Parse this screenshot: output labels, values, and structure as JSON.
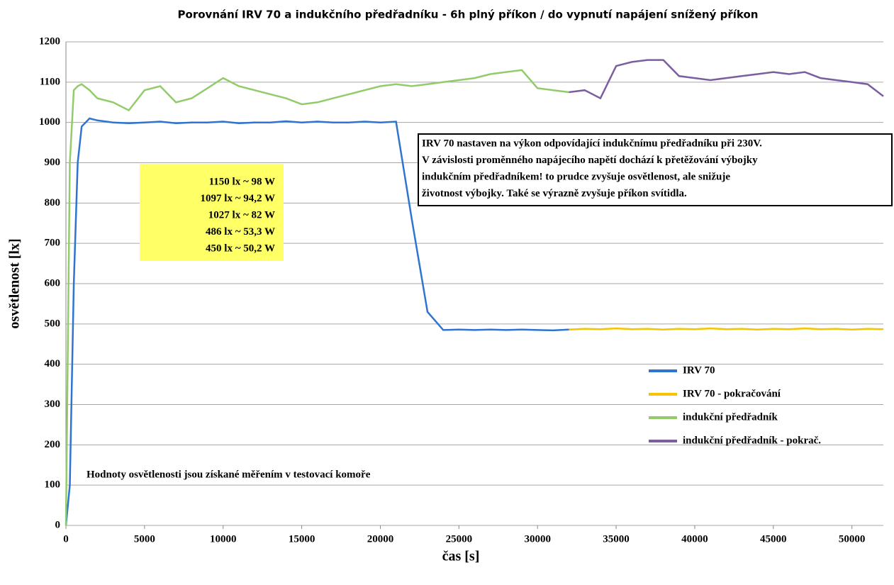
{
  "chart_data": {
    "type": "line",
    "title": "Porovnání IRV 70 a indukčního předřadníku - 6h plný příkon / do vypnutí napájení snížený příkon",
    "x_label": "čas [s]",
    "y_label": "osvětlenost [lx]",
    "x": [
      0,
      250,
      500,
      750,
      1000,
      1500,
      2000,
      3000,
      4000,
      5000,
      6000,
      7000,
      8000,
      9000,
      10000,
      11000,
      12000,
      13000,
      14000,
      15000,
      16000,
      17000,
      18000,
      19000,
      20000,
      21000,
      22000,
      23000,
      24000,
      25000,
      26000,
      27000,
      28000,
      29000,
      30000,
      31000,
      32000,
      33000,
      34000,
      35000,
      36000,
      37000,
      38000,
      39000,
      40000,
      41000,
      42000,
      43000,
      44000,
      45000,
      46000,
      47000,
      48000,
      49000,
      50000,
      51000,
      52000
    ],
    "series": [
      {
        "name": "IRV 70",
        "color": "#2f74d0",
        "values": [
          0,
          100,
          600,
          900,
          990,
          1010,
          1005,
          1000,
          998,
          1000,
          1002,
          998,
          1000,
          1000,
          1002,
          998,
          1000,
          1000,
          1003,
          1000,
          1002,
          1000,
          1000,
          1002,
          1000,
          1002,
          760,
          530,
          485,
          486,
          485,
          486,
          485,
          486,
          485,
          484,
          486,
          null,
          null,
          null,
          null,
          null,
          null,
          null,
          null,
          null,
          null,
          null,
          null,
          null,
          null,
          null,
          null,
          null,
          null,
          null,
          null
        ]
      },
      {
        "name": "IRV 70  - pokračování",
        "color": "#f5c400",
        "values": [
          null,
          null,
          null,
          null,
          null,
          null,
          null,
          null,
          null,
          null,
          null,
          null,
          null,
          null,
          null,
          null,
          null,
          null,
          null,
          null,
          null,
          null,
          null,
          null,
          null,
          null,
          null,
          null,
          null,
          null,
          null,
          null,
          null,
          null,
          null,
          null,
          486,
          488,
          487,
          489,
          487,
          488,
          486,
          488,
          487,
          489,
          487,
          488,
          486,
          488,
          487,
          489,
          487,
          488,
          486,
          488,
          487
        ]
      },
      {
        "name": "indukční předřadník",
        "color": "#92cc6a",
        "values": [
          0,
          900,
          1080,
          1090,
          1095,
          1080,
          1060,
          1050,
          1030,
          1080,
          1090,
          1050,
          1060,
          1085,
          1110,
          1090,
          1080,
          1070,
          1060,
          1045,
          1050,
          1060,
          1070,
          1080,
          1090,
          1095,
          1090,
          1095,
          1100,
          1105,
          1110,
          1120,
          1125,
          1130,
          1085,
          1080,
          1075,
          null,
          null,
          null,
          null,
          null,
          null,
          null,
          null,
          null,
          null,
          null,
          null,
          null,
          null,
          null,
          null,
          null,
          null,
          null,
          null
        ]
      },
      {
        "name": "indukční předřadník  - pokrač.",
        "color": "#7a5ea0",
        "values": [
          null,
          null,
          null,
          null,
          null,
          null,
          null,
          null,
          null,
          null,
          null,
          null,
          null,
          null,
          null,
          null,
          null,
          null,
          null,
          null,
          null,
          null,
          null,
          null,
          null,
          null,
          null,
          null,
          null,
          null,
          null,
          null,
          null,
          null,
          null,
          null,
          1075,
          1080,
          1060,
          1140,
          1150,
          1155,
          1155,
          1115,
          1110,
          1105,
          1110,
          1115,
          1120,
          1125,
          1120,
          1125,
          1110,
          1105,
          1100,
          1095,
          1065
        ]
      }
    ],
    "xlim": [
      0,
      52000
    ],
    "ylim": [
      0,
      1200
    ],
    "xticks": [
      0,
      5000,
      10000,
      15000,
      20000,
      25000,
      30000,
      35000,
      40000,
      45000,
      50000
    ],
    "yticks": [
      0,
      100,
      200,
      300,
      400,
      500,
      600,
      700,
      800,
      900,
      1000,
      1100,
      1200
    ],
    "grid": true,
    "legend": "lower right",
    "note_box": [
      "1150 lx ~ 98 W",
      "1097 lx ~ 94,2 W",
      "1027 lx ~ 82 W",
      "486 lx ~ 53,3 W",
      "450 lx ~ 50,2 W"
    ],
    "text_box": [
      "IRV 70 nastaven na výkon odpovídající indukčnímu předřadníku při 230V.",
      "V závislosti proměnného napájecího napětí dochází k přetěžování výbojky",
      "indukčním předřadníkem! to prudce zvyšuje osvětlenost, ale snižuje",
      "životnost výbojky. Také se výrazně zvyšuje příkon svítidla."
    ],
    "footnote": "Hodnoty osvětlenosti jsou získané měřením v testovací komoře"
  }
}
